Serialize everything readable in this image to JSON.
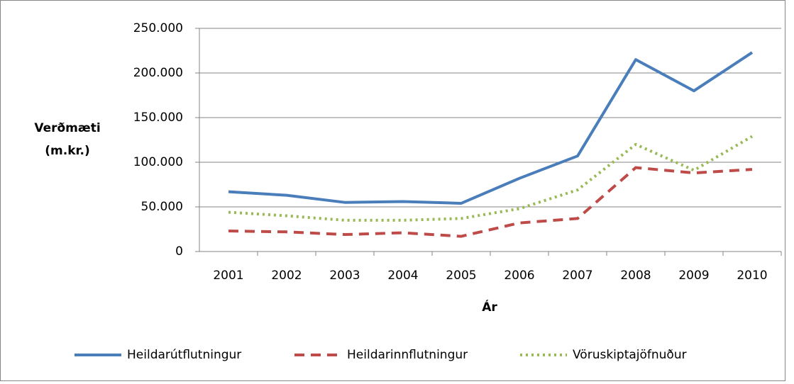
{
  "chart_data": {
    "type": "line",
    "ylabel": [
      "Verðmæti",
      "(m.kr.)"
    ],
    "xlabel": "Ár",
    "categories": [
      "2001",
      "2002",
      "2003",
      "2004",
      "2005",
      "2006",
      "2007",
      "2008",
      "2009",
      "2010"
    ],
    "series": [
      {
        "name": "Heildarútflutningur",
        "color": "#4a7ebb",
        "style": "solid",
        "values": [
          67000,
          63000,
          55000,
          56000,
          54000,
          82000,
          107000,
          215000,
          180000,
          223000
        ]
      },
      {
        "name": "Heildarinnflutningur",
        "color": "#be4b48",
        "style": "dashed",
        "values": [
          23000,
          22000,
          19000,
          21000,
          17000,
          32000,
          37000,
          94000,
          88000,
          92000
        ]
      },
      {
        "name": "Vöruskiptajöfnuður",
        "color": "#98b954",
        "style": "dotted",
        "values": [
          44000,
          40000,
          35000,
          35000,
          37000,
          48000,
          69000,
          120000,
          91000,
          129000
        ]
      }
    ],
    "ylim": [
      0,
      250000
    ],
    "yticks": [
      0,
      {
        "value": 50000,
        "label": "50.000"
      },
      {
        "value": 100000,
        "label": "100.000"
      },
      {
        "value": 150000,
        "label": "150.000"
      },
      {
        "value": 200000,
        "label": "200.000"
      },
      {
        "value": 250000,
        "label": "250.000"
      }
    ],
    "grid": true,
    "legend": "bottom"
  }
}
